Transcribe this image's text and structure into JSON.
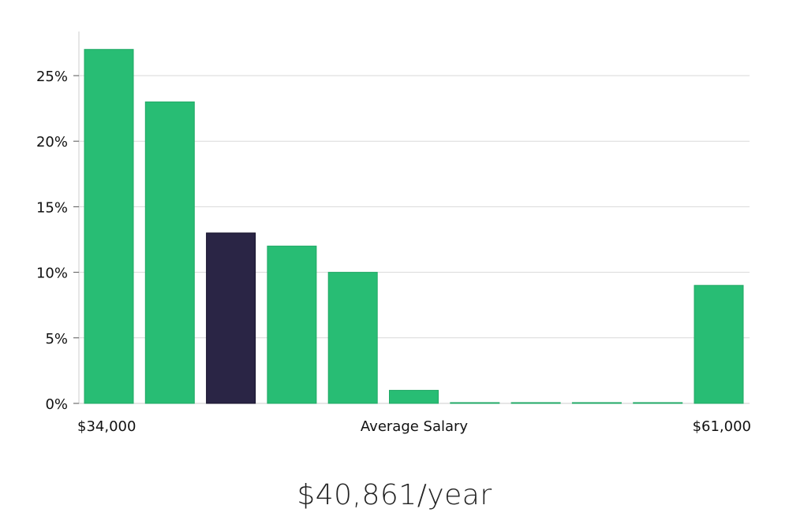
{
  "chart_data": {
    "type": "bar",
    "title": "",
    "xlabel": "Average Salary",
    "ylabel": "",
    "x_range_labels": {
      "min": "$34,000",
      "max": "$61,000"
    },
    "yticks": [
      "0%",
      "5%",
      "10%",
      "15%",
      "20%",
      "25%"
    ],
    "ylim": [
      0,
      28
    ],
    "grid": true,
    "values": [
      27,
      23,
      13,
      12,
      10,
      1,
      0,
      0,
      0,
      0,
      9
    ],
    "highlight_index": 2,
    "colors": {
      "bar": "#28bd74",
      "bar_edge": "#20a865",
      "highlight": "#2a2545",
      "grid": "#d9d9d9",
      "axis": "#cccccc"
    }
  },
  "salary_text": "$40,861/year"
}
